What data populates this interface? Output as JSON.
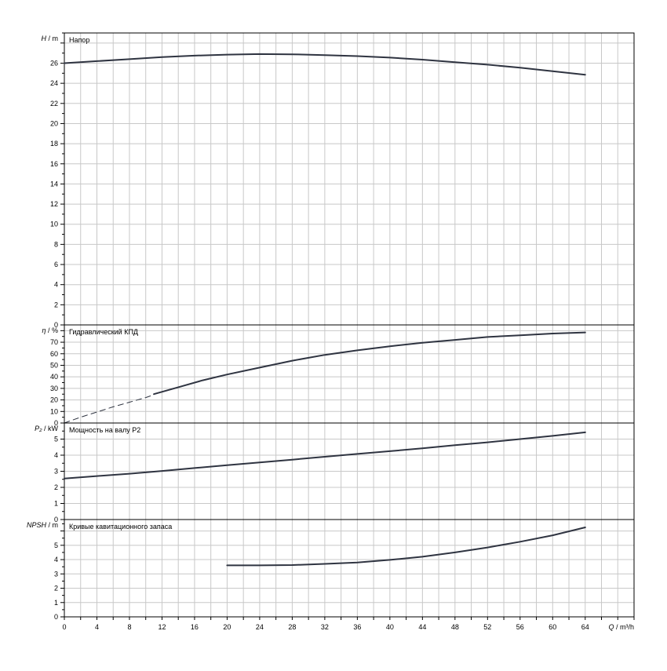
{
  "chart_data": {
    "type": "line",
    "x_axis": {
      "label_symbol": "Q",
      "label_unit": "m³/h",
      "xlim": [
        0,
        70
      ],
      "ticks": [
        0,
        4,
        8,
        12,
        16,
        20,
        24,
        28,
        32,
        36,
        40,
        44,
        48,
        52,
        56,
        60,
        64
      ],
      "tick_labels": [
        "0",
        "4",
        "8",
        "12",
        "16",
        "20",
        "24",
        "28",
        "32",
        "36",
        "40",
        "44",
        "48",
        "52",
        "56",
        "60",
        "64"
      ]
    },
    "grid": true,
    "line_color": "#2f3441",
    "panels": [
      {
        "id": "head",
        "title": "Напор",
        "ylabel_symbol": "H",
        "ylabel_unit": "m",
        "ylim": [
          0,
          29
        ],
        "ticks": [
          0,
          2,
          4,
          6,
          8,
          10,
          12,
          14,
          16,
          18,
          20,
          22,
          24,
          26
        ],
        "tick_labels": [
          "0",
          "2",
          "4",
          "6",
          "8",
          "10",
          "12",
          "14",
          "16",
          "18",
          "20",
          "22",
          "24",
          "26"
        ],
        "series": [
          {
            "style": "solid",
            "x": [
              0,
              4,
              8,
              12,
              16,
              20,
              24,
              28,
              32,
              36,
              40,
              44,
              48,
              52,
              56,
              60,
              64
            ],
            "y": [
              26.0,
              26.2,
              26.4,
              26.6,
              26.75,
              26.85,
              26.9,
              26.88,
              26.8,
              26.7,
              26.55,
              26.35,
              26.1,
              25.85,
              25.55,
              25.2,
              24.85
            ]
          }
        ]
      },
      {
        "id": "efficiency",
        "title": "Гидравлический КПД",
        "ylabel_symbol": "η",
        "ylabel_unit": "%",
        "ylim": [
          0,
          85
        ],
        "ticks": [
          0,
          10,
          20,
          30,
          40,
          50,
          60,
          70
        ],
        "tick_labels": [
          "0",
          "10",
          "20",
          "30",
          "40",
          "50",
          "60",
          "70"
        ],
        "series": [
          {
            "style": "dashed",
            "x": [
              0,
              2,
              4,
              6,
              8,
              10,
              11
            ],
            "y": [
              0,
              5,
              9.5,
              14,
              18,
              22,
              24.5
            ]
          },
          {
            "style": "solid",
            "x": [
              11,
              14,
              17,
              20,
              24,
              28,
              32,
              36,
              40,
              44,
              48,
              52,
              56,
              60,
              64
            ],
            "y": [
              25,
              31,
              37,
              42,
              48,
              54,
              59,
              63,
              66.5,
              69.5,
              72,
              74.5,
              76,
              77.5,
              78.5
            ]
          }
        ]
      },
      {
        "id": "power",
        "title": "Мощность на валу P2",
        "ylabel_symbol": "P₂",
        "ylabel_unit": "kW",
        "ylim": [
          0,
          6
        ],
        "ticks": [
          0,
          1,
          2,
          3,
          4,
          5
        ],
        "tick_labels": [
          "0",
          "1",
          "2",
          "3",
          "4",
          "5"
        ],
        "series": [
          {
            "style": "solid",
            "x": [
              0,
              4,
              8,
              12,
              16,
              20,
              24,
              28,
              32,
              36,
              40,
              44,
              48,
              52,
              56,
              60,
              64
            ],
            "y": [
              2.55,
              2.7,
              2.85,
              3.02,
              3.2,
              3.38,
              3.55,
              3.72,
              3.9,
              4.08,
              4.25,
              4.43,
              4.62,
              4.8,
              5.0,
              5.2,
              5.42
            ]
          }
        ]
      },
      {
        "id": "npsh",
        "title": "Кривые кавитационного запаса",
        "ylabel_symbol": "NPSH",
        "ylabel_unit": "m",
        "ylim": [
          0,
          6.8
        ],
        "ticks": [
          0,
          1,
          2,
          3,
          4,
          5
        ],
        "tick_labels": [
          "0",
          "1",
          "2",
          "3",
          "4",
          "5"
        ],
        "series": [
          {
            "style": "solid",
            "x": [
              20,
              24,
              28,
              32,
              36,
              40,
              44,
              48,
              52,
              56,
              60,
              64
            ],
            "y": [
              3.6,
              3.6,
              3.62,
              3.7,
              3.8,
              3.98,
              4.2,
              4.5,
              4.85,
              5.25,
              5.7,
              6.25
            ]
          }
        ]
      }
    ]
  }
}
